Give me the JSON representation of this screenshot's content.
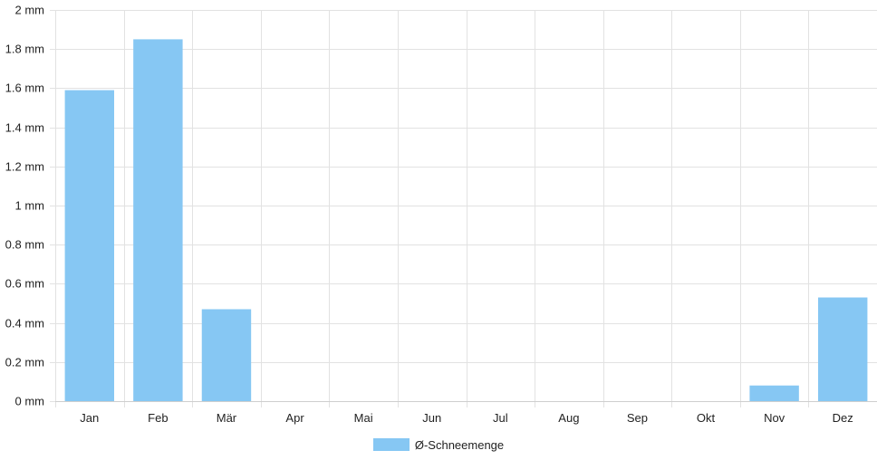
{
  "chart_data": {
    "type": "bar",
    "categories": [
      "Jan",
      "Feb",
      "Mär",
      "Apr",
      "Mai",
      "Jun",
      "Jul",
      "Aug",
      "Sep",
      "Okt",
      "Nov",
      "Dez"
    ],
    "series": [
      {
        "name": "Ø-Schneemenge",
        "values": [
          1.59,
          1.85,
          0.47,
          0,
          0,
          0,
          0,
          0,
          0,
          0,
          0.08,
          0.53
        ],
        "color": "#86c7f3"
      }
    ],
    "y_ticks": [
      "0 mm",
      "0.2 mm",
      "0.4 mm",
      "0.6 mm",
      "0.8 mm",
      "1 mm",
      "1.2 mm",
      "1.4 mm",
      "1.6 mm",
      "1.8 mm",
      "2 mm"
    ],
    "ylim": [
      0,
      2
    ],
    "unit": "mm",
    "grid": true,
    "legend_position": "bottom"
  }
}
